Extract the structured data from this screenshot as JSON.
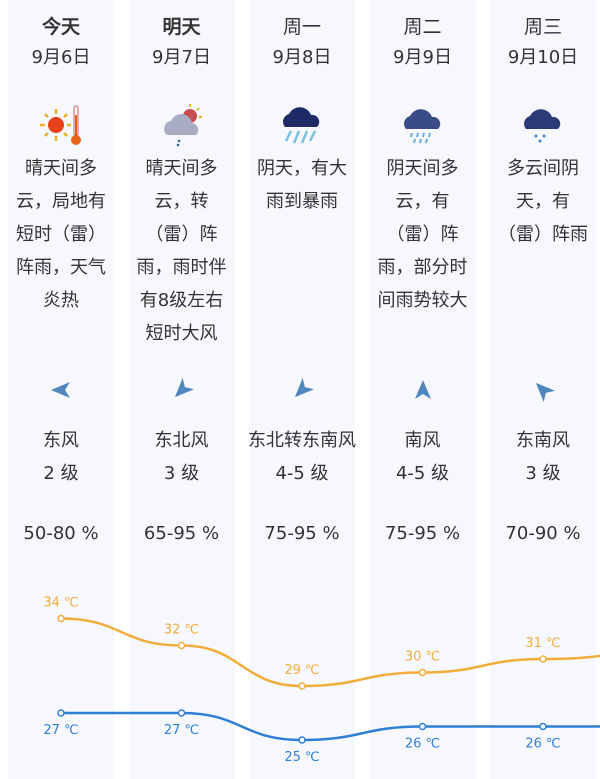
{
  "colors": {
    "column_bg": "#f6f8fd",
    "high": "#f0ad3c",
    "low": "#2f7fd5",
    "arrow": "#4f86bd",
    "text": "#333333"
  },
  "days": [
    {
      "day": "今天",
      "bold": true,
      "date": "9月6日",
      "icon": "sunny-hot-icon",
      "desc": "晴天间多云，局地有短时（雷）阵雨，天气炎热",
      "wind_dir": "东风",
      "wind_level": "2 级",
      "wind_arrow_rotation_deg": -90,
      "humidity": "50-80 %"
    },
    {
      "day": "明天",
      "bold": true,
      "date": "9月7日",
      "icon": "partly-cloudy-shower-icon",
      "desc": "晴天间多云，转（雷）阵雨，雨时伴有8级左右短时大风",
      "wind_dir": "东北风",
      "wind_level": "3 级",
      "wind_arrow_rotation_deg": -135,
      "humidity": "65-95 %"
    },
    {
      "day": "周一",
      "bold": false,
      "date": "9月8日",
      "icon": "heavy-rain-icon",
      "desc": "阴天，有大雨到暴雨",
      "wind_dir": "东北转东南风",
      "wind_level": "4-5 级",
      "wind_arrow_rotation_deg": -135,
      "humidity": "75-95 %"
    },
    {
      "day": "周二",
      "bold": false,
      "date": "9月9日",
      "icon": "rain-icon",
      "desc": "阴天间多云，有（雷）阵雨，部分时间雨势较大",
      "wind_dir": "南风",
      "wind_level": "4-5 级",
      "wind_arrow_rotation_deg": 0,
      "humidity": "75-95 %"
    },
    {
      "day": "周三",
      "bold": false,
      "date": "9月10日",
      "icon": "light-rain-icon",
      "desc": "多云间阴天，有（雷）阵雨",
      "wind_dir": "东南风",
      "wind_level": "3 级",
      "wind_arrow_rotation_deg": -45,
      "humidity": "70-90 %"
    }
  ],
  "chart_data": {
    "type": "line",
    "unit": "℃",
    "categories": [
      "9月6日",
      "9月7日",
      "9月8日",
      "9月9日",
      "9月10日"
    ],
    "series": [
      {
        "key": "high",
        "values": [
          34,
          32,
          29,
          30,
          31
        ],
        "labels": [
          "34 ℃",
          "32 ℃",
          "29 ℃",
          "30 ℃",
          "31 ℃"
        ],
        "next_value": 31.5
      },
      {
        "key": "low",
        "values": [
          27,
          27,
          25,
          26,
          26
        ],
        "labels": [
          "27 ℃",
          "27 ℃",
          "25 ℃",
          "26 ℃",
          "26 ℃"
        ],
        "next_value": 26
      }
    ]
  }
}
